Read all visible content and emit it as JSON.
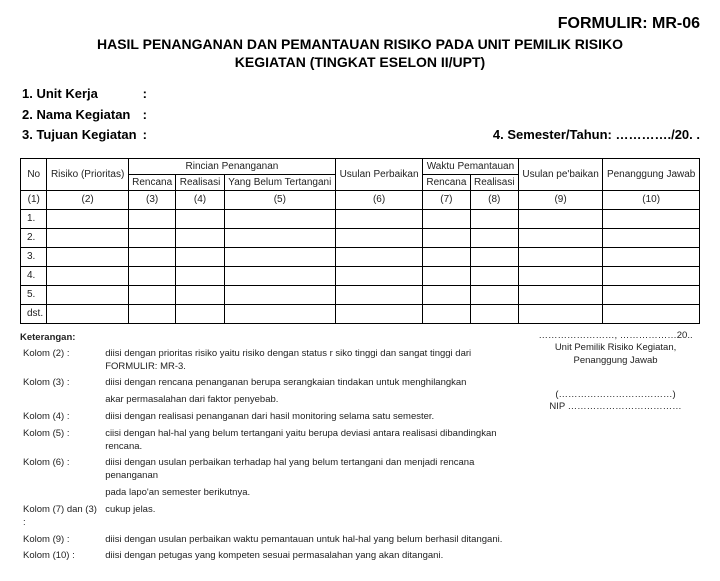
{
  "form_code": "FORMULIR: MR-06",
  "title_line1": "HASIL PENANGANAN DAN PEMANTAUAN RISIKO PADA UNIT PEMILIK RISIKO",
  "title_line2": "KEGIATAN (TINGKAT ESELON II/UPT)",
  "meta": {
    "l1_label": "1. Unit Kerja",
    "l2_label": "2. Nama Kegiatan",
    "l3_label": "3. Tujuan Kegiatan",
    "colon": ":",
    "right": "4. Semester/Tahun: …………./20. ."
  },
  "headers": {
    "no": "No",
    "risiko": "Risiko (Prioritas)",
    "rincian": "Rincian Penanganan",
    "rencana": "Rencana",
    "realisasi": "Realisasi",
    "belum": "Yang Belum Tertangani",
    "usulan_perbaikan": "Usulan Perbaikan",
    "waktu": "Waktu Pemantauan",
    "usulan_p": "Usulan pe'baikan",
    "penanggung": "Penanggung Jawab"
  },
  "colnums": {
    "c1": "(1)",
    "c2": "(2)",
    "c3": "(3)",
    "c4": "(4)",
    "c5": "(5)",
    "c6": "(6)",
    "c7": "(7)",
    "c8": "(8)",
    "c9": "(9)",
    "c10": "(10)"
  },
  "rows": [
    "1.",
    "2.",
    "3.",
    "4.",
    "5.",
    "dst."
  ],
  "ket": {
    "title": "Keterangan:",
    "k2a": "Kolom (2)  :",
    "k2b": "diisi dengan prioritas risiko yaitu risiko dengan status r siko tinggi dan sangat tinggi dari FORMULIR: MR-3.",
    "k3a": "Kolom (3)  :",
    "k3b": "diisi dengan rencana penanganan berupa serangkaian tindakan untuk menghilangkan",
    "k3c": "akar permasalahan dari faktor penyebab.",
    "k4a": "Kolom (4)  :",
    "k4b": "diisi dengan realisasi penanganan dari hasil monitoring selama satu semester.",
    "k5a": "Kolom (5)  :",
    "k5b": "ciisi dengan hal-hal yang belum tertangani yaitu berupa deviasi antara realisasi dibandingkan rencana.",
    "k6a": "Kolom (6)  :",
    "k6b": "diisi dengan usulan perbaikan terhadap hal yang belum tertangani dan menjadi rencana penanganan",
    "k6c": "pada lapo'an semester berikutnya.",
    "k78a": "Kolom (7) dan (3) :",
    "k78b": "cukup jelas.",
    "k9a": "Kolom (9)  :",
    "k9b": "diisi dengan usulan perbaikan waktu pemantauan untuk hal-hal yang belum berhasil ditangani.",
    "k10a": "Kolom (10) :",
    "k10b": "diisi dengan petugas yang kompeten sesuai permasalahan yang akan ditangani."
  },
  "sign": {
    "loc": "……………………, ………………20..",
    "role1": "Unit Pemilik Risiko Kegiatan,",
    "role2": "Penanggung Jawab",
    "name": "(………………………………)",
    "nip": "NIP ………………………………"
  }
}
